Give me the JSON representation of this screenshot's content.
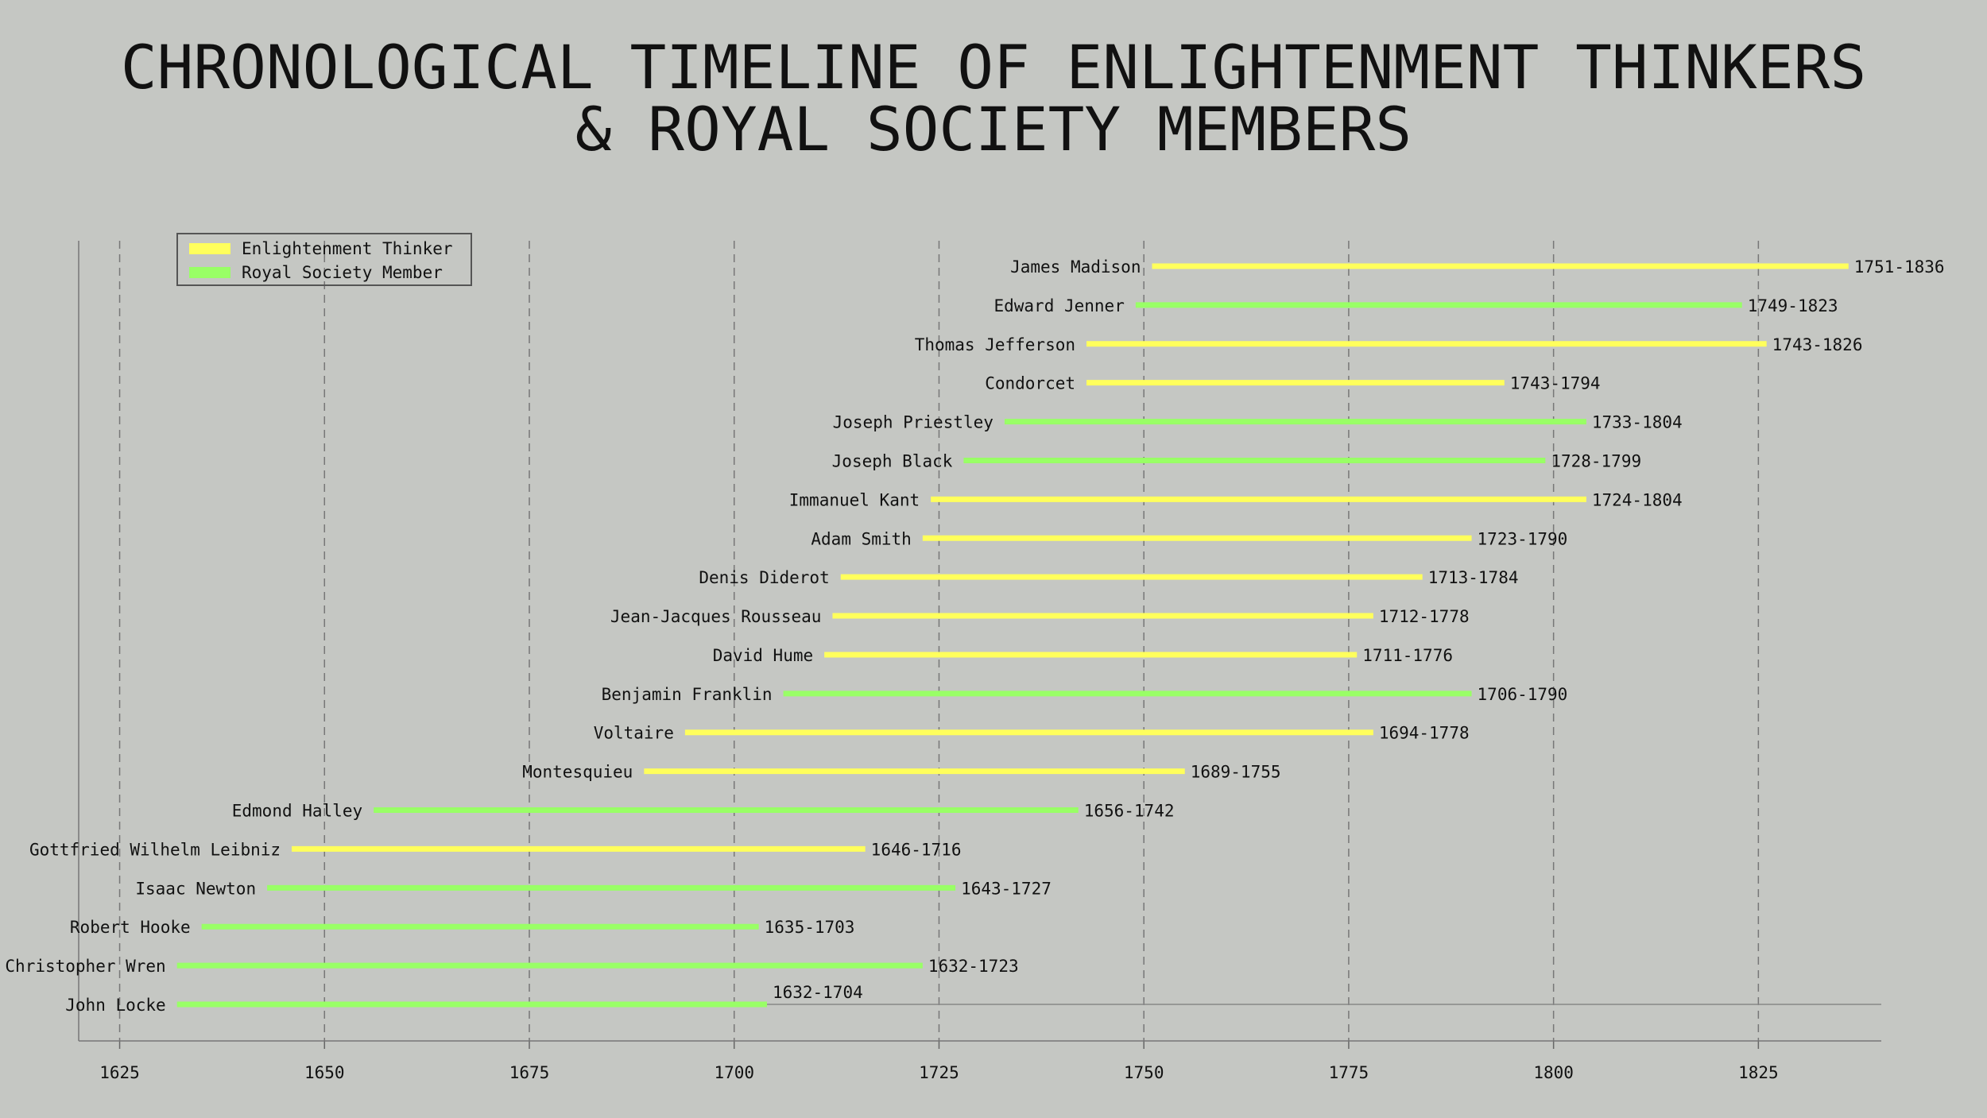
{
  "title_line1": "CHRONOLOGICAL TIMELINE OF ENLIGHTENMENT THINKERS",
  "title_line2": "& ROYAL SOCIETY MEMBERS",
  "chart_data": {
    "type": "timeline",
    "title": "CHRONOLOGICAL TIMELINE OF ENLIGHTENMENT THINKERS & ROYAL SOCIETY MEMBERS",
    "xlim": [
      1620,
      1840
    ],
    "xticks": [
      1625,
      1650,
      1675,
      1700,
      1725,
      1750,
      1775,
      1800,
      1825
    ],
    "grid": "vertical dashed",
    "legend_placement": "top-left",
    "series": [
      {
        "name": "Enlightenment Thinker",
        "color": "#ffff5c"
      },
      {
        "name": "Royal Society Member",
        "color": "#99ff66"
      }
    ],
    "items": [
      {
        "name": "James Madison",
        "start": 1751,
        "end": 1836,
        "label": "1751-1836",
        "group": "Enlightenment Thinker"
      },
      {
        "name": "Edward Jenner",
        "start": 1749,
        "end": 1823,
        "label": "1749-1823",
        "group": "Royal Society Member"
      },
      {
        "name": "Thomas Jefferson",
        "start": 1743,
        "end": 1826,
        "label": "1743-1826",
        "group": "Enlightenment Thinker"
      },
      {
        "name": "Condorcet",
        "start": 1743,
        "end": 1794,
        "label": "1743-1794",
        "group": "Enlightenment Thinker"
      },
      {
        "name": "Joseph Priestley",
        "start": 1733,
        "end": 1804,
        "label": "1733-1804",
        "group": "Royal Society Member"
      },
      {
        "name": "Joseph Black",
        "start": 1728,
        "end": 1799,
        "label": "1728-1799",
        "group": "Royal Society Member"
      },
      {
        "name": "Immanuel Kant",
        "start": 1724,
        "end": 1804,
        "label": "1724-1804",
        "group": "Enlightenment Thinker"
      },
      {
        "name": "Adam Smith",
        "start": 1723,
        "end": 1790,
        "label": "1723-1790",
        "group": "Enlightenment Thinker"
      },
      {
        "name": "Denis Diderot",
        "start": 1713,
        "end": 1784,
        "label": "1713-1784",
        "group": "Enlightenment Thinker"
      },
      {
        "name": "Jean-Jacques Rousseau",
        "start": 1712,
        "end": 1778,
        "label": "1712-1778",
        "group": "Enlightenment Thinker"
      },
      {
        "name": "David Hume",
        "start": 1711,
        "end": 1776,
        "label": "1711-1776",
        "group": "Enlightenment Thinker"
      },
      {
        "name": "Benjamin Franklin",
        "start": 1706,
        "end": 1790,
        "label": "1706-1790",
        "group": "Royal Society Member"
      },
      {
        "name": "Voltaire",
        "start": 1694,
        "end": 1778,
        "label": "1694-1778",
        "group": "Enlightenment Thinker"
      },
      {
        "name": "Montesquieu",
        "start": 1689,
        "end": 1755,
        "label": "1689-1755",
        "group": "Enlightenment Thinker"
      },
      {
        "name": "Edmond Halley",
        "start": 1656,
        "end": 1742,
        "label": "1656-1742",
        "group": "Royal Society Member"
      },
      {
        "name": "Gottfried Wilhelm Leibniz",
        "start": 1646,
        "end": 1716,
        "label": "1646-1716",
        "group": "Enlightenment Thinker"
      },
      {
        "name": "Isaac Newton",
        "start": 1643,
        "end": 1727,
        "label": "1643-1727",
        "group": "Royal Society Member"
      },
      {
        "name": "Robert Hooke",
        "start": 1635,
        "end": 1703,
        "label": "1635-1703",
        "group": "Royal Society Member"
      },
      {
        "name": "Christopher Wren",
        "start": 1632,
        "end": 1723,
        "label": "1632-1723",
        "group": "Royal Society Member"
      },
      {
        "name": "John Locke",
        "start": 1632,
        "end": 1704,
        "label": "1632-1704",
        "group": "Royal Society Member"
      }
    ]
  }
}
